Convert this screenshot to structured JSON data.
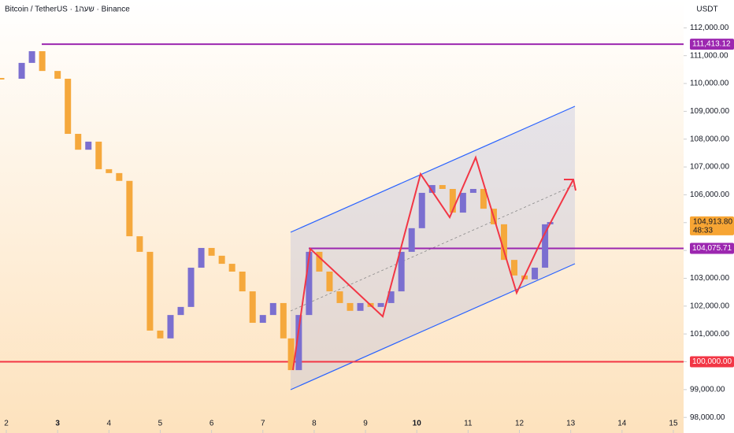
{
  "chart_data": {
    "type": "candlestick",
    "title": "Bitcoin / TetherUS · 1שעה · Binance",
    "y_axis_label": "USDT",
    "x": [
      1.9,
      2.3,
      2.5,
      2.7,
      3.0,
      3.2,
      3.4,
      3.6,
      3.8,
      4.0,
      4.2,
      4.4,
      4.6,
      4.8,
      5.0,
      5.2,
      5.4,
      5.6,
      5.8,
      6.0,
      6.2,
      6.4,
      6.6,
      6.8,
      7.0,
      7.2,
      7.4,
      7.55,
      7.7,
      7.9,
      8.1,
      8.3,
      8.5,
      8.7,
      8.9,
      9.1,
      9.3,
      9.5,
      9.7,
      9.9,
      10.1,
      10.3,
      10.5,
      10.7,
      10.9,
      11.1,
      11.3,
      11.5,
      11.7,
      11.9,
      12.1,
      12.3,
      12.5,
      12.6
    ],
    "values": [
      110170,
      110740,
      111160,
      110450,
      110170,
      108190,
      107620,
      107910,
      106920,
      106780,
      106500,
      104510,
      103950,
      101120,
      100840,
      101680,
      101970,
      103380,
      104090,
      103810,
      103520,
      103240,
      102530,
      101400,
      101680,
      102110,
      100840,
      99700,
      101680,
      103950,
      103240,
      102530,
      102110,
      101830,
      102110,
      101970,
      102110,
      102530,
      103950,
      104800,
      106070,
      106350,
      106210,
      105360,
      106070,
      106210,
      105500,
      104940,
      103660,
      103100,
      102960,
      103380,
      104940,
      105020
    ],
    "up_color": "#7b6fd0",
    "down_color": "#f5a83c",
    "xlim": [
      1.877,
      15.2
    ],
    "xticks": [
      2,
      3,
      4,
      5,
      6,
      7,
      8,
      9,
      10,
      11,
      12,
      13,
      14,
      15
    ],
    "ylim": [
      97440,
      113000
    ],
    "yticks": [
      {
        "value": 98000,
        "label": "98,000.00"
      },
      {
        "value": 99000,
        "label": "99,000.00"
      },
      {
        "value": 100000,
        "label": "100,000.00"
      },
      {
        "value": 101000,
        "label": "101,000.00"
      },
      {
        "value": 102000,
        "label": "102,000.00"
      },
      {
        "value": 103000,
        "label": "103,000.00"
      },
      {
        "value": 104000,
        "label": "104,000.00"
      },
      {
        "value": 105000,
        "label": "105,000.00"
      },
      {
        "value": 106000,
        "label": "106,000.00"
      },
      {
        "value": 107000,
        "label": "107,000.00"
      },
      {
        "value": 108000,
        "label": "108,000.00"
      },
      {
        "value": 109000,
        "label": "109,000.00"
      },
      {
        "value": 110000,
        "label": "110,000.00"
      },
      {
        "value": 111000,
        "label": "111,000.00"
      },
      {
        "value": 112000,
        "label": "112,000.00"
      }
    ],
    "levels": [
      {
        "value": 111413.12,
        "label": "111,413.12",
        "color": "#9c27b0"
      },
      {
        "value": 104075.71,
        "label": "104,075.71",
        "color": "#9c27b0"
      },
      {
        "value": 100000,
        "label": "100,000.00",
        "color": "#f23645"
      }
    ],
    "current_price": {
      "value": 104913.8,
      "label": "104,913.80",
      "countdown": "48:33",
      "color": "#f7a534"
    }
  }
}
